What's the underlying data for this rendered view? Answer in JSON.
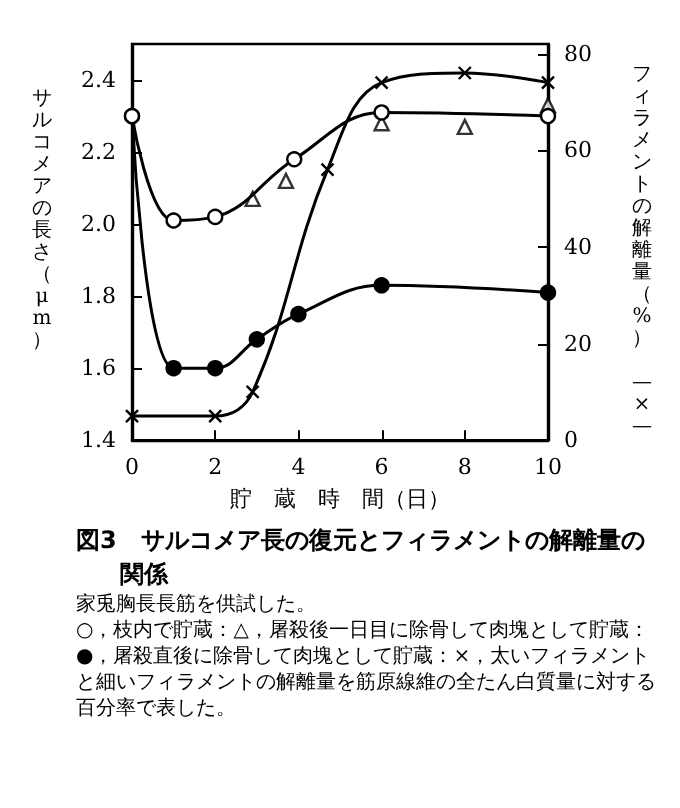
{
  "chart_data": {
    "type": "line",
    "title": "図3　サルコメア長の復元とフィラメントの解離量の関係",
    "xlabel": "貯　蔵　時　間（日）",
    "ylabel": "サルコメアの長さ（μm）",
    "y2label": "フィラメントの解離量（%）　—×—",
    "annotations": [
      "家兎胸長長筋を供試した。",
      "○，枝内で貯蔵：△，屠殺後一日目に除骨して肉塊として貯蔵：●，屠殺直後に除骨して肉塊として貯蔵：×，太いフィラメントと細いフィラメントの解離量を筋原線維の全たん白質量に対する百分率で表した。"
    ],
    "xlim": [
      0,
      10
    ],
    "xticks": [
      0,
      2,
      4,
      6,
      8,
      10
    ],
    "ylim": [
      1.4,
      2.5
    ],
    "yticks": [
      1.4,
      1.6,
      1.8,
      {
        "value": 2,
        "label": "2.0"
      },
      2.2,
      2.4
    ],
    "y2lim": [
      0,
      82
    ],
    "y2ticks": [
      0,
      20,
      40,
      60,
      80
    ],
    "series": [
      {
        "type": "line",
        "marker": "circle",
        "color": "#000000",
        "colors": [
          "#ffffff",
          "#ffffff",
          "#ffffff",
          "#ffffff",
          "#ffffff",
          "#ffffff"
        ],
        "x": [
          0,
          1,
          2,
          3.9,
          6,
          10
        ],
        "values": [
          2.3,
          2.01,
          2.02,
          2.18,
          2.31,
          2.3
        ]
      },
      {
        "type": "scatter",
        "marker": "triangle",
        "color": "#000000",
        "colors": [
          "#ffffff",
          "#ffffff",
          "#ffffff",
          "#ffffff",
          "#ffffff"
        ],
        "x": [
          2.9,
          3.7,
          6,
          8,
          10
        ],
        "values": [
          2.07,
          2.12,
          2.28,
          2.27,
          2.33
        ]
      },
      {
        "type": "line",
        "marker": "circle",
        "color": "#000000",
        "x": [
          0,
          1,
          2,
          3,
          4,
          6,
          10
        ],
        "values": [
          2.3,
          1.6,
          1.6,
          1.68,
          1.75,
          1.83,
          1.81
        ]
      },
      {
        "type": "line",
        "marker": "cross",
        "color": "#000000",
        "axis": "y2",
        "x": [
          0,
          2,
          2.9,
          4.7,
          6,
          8,
          10
        ],
        "values": [
          5,
          5,
          10,
          56,
          74,
          76,
          74
        ]
      }
    ]
  }
}
